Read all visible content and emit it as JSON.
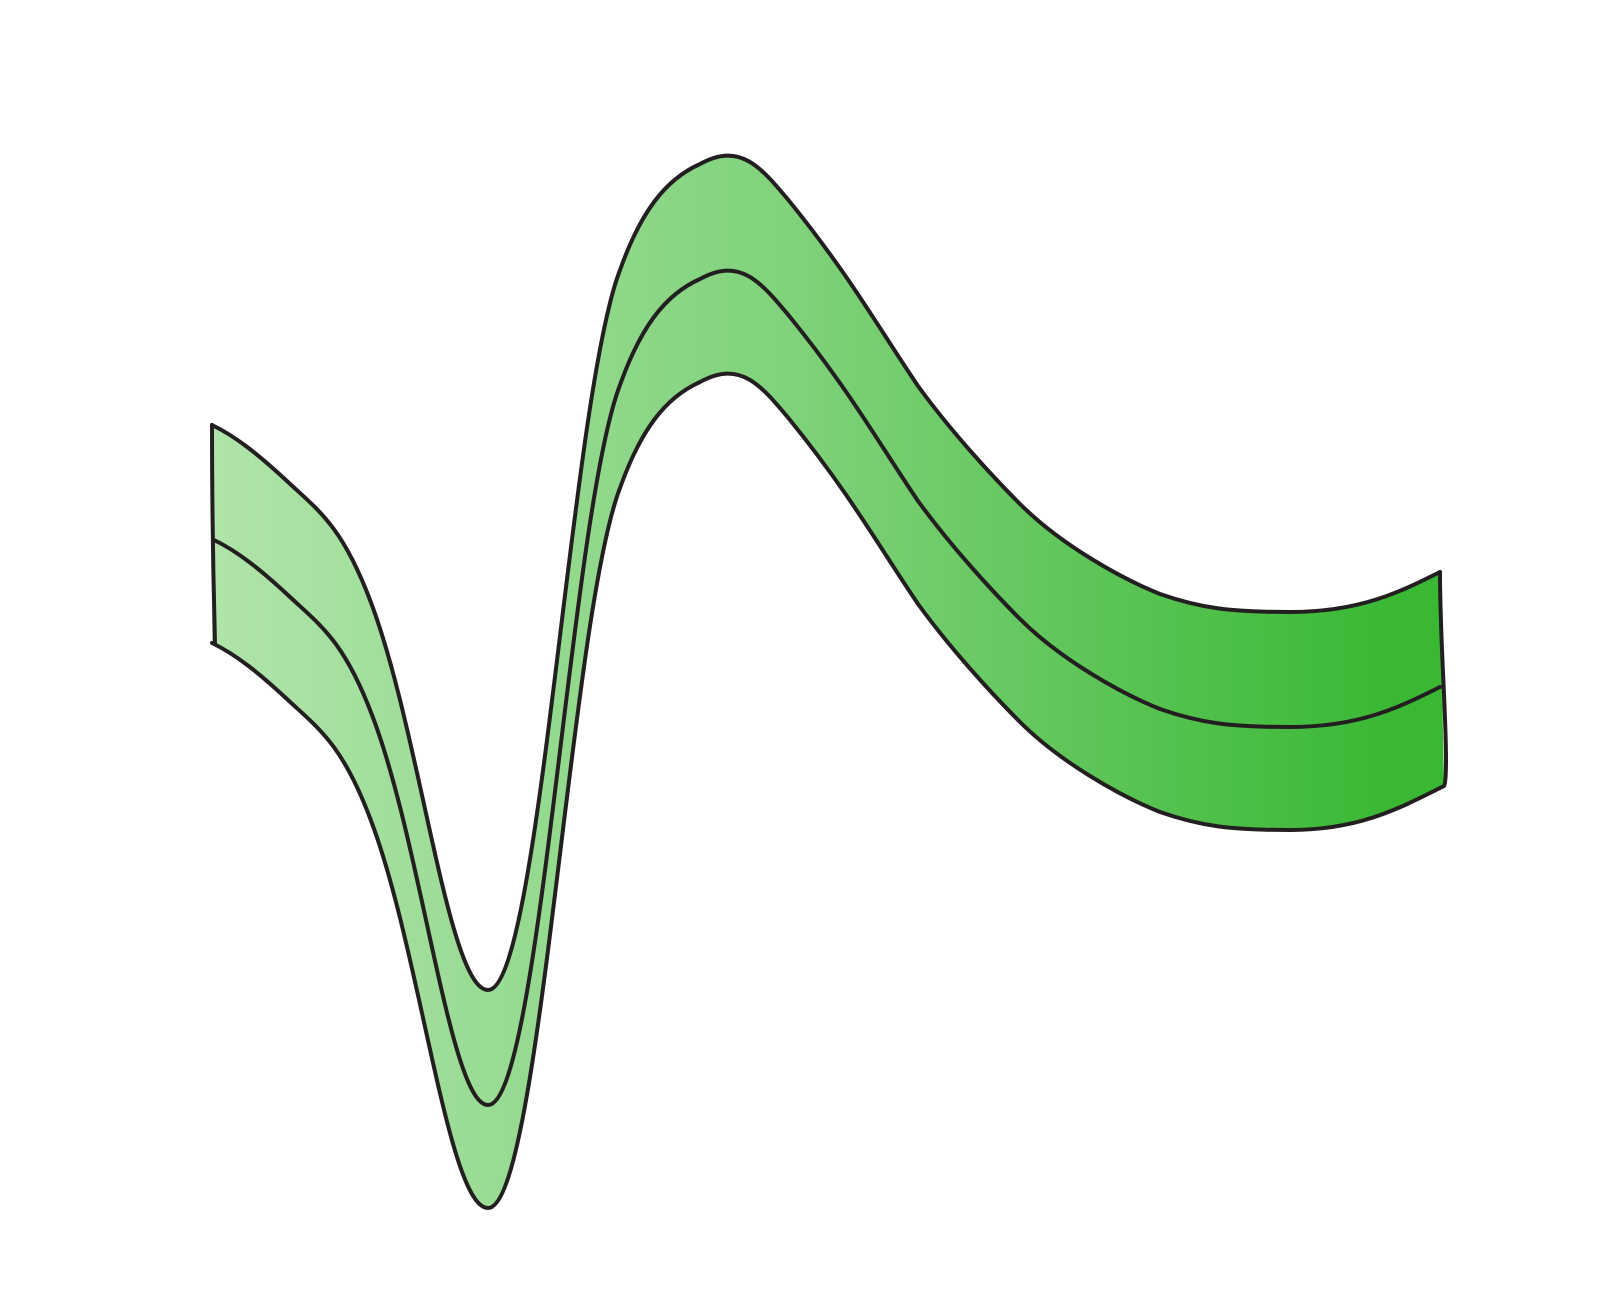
{
  "illustration": {
    "subject": "green-ribbon-band",
    "colors": {
      "background": "#ffffff",
      "gradient_start": "#b0e4aa",
      "gradient_mid": "#7fd27a",
      "gradient_end": "#3ab834",
      "outline": "#231f20"
    }
  }
}
